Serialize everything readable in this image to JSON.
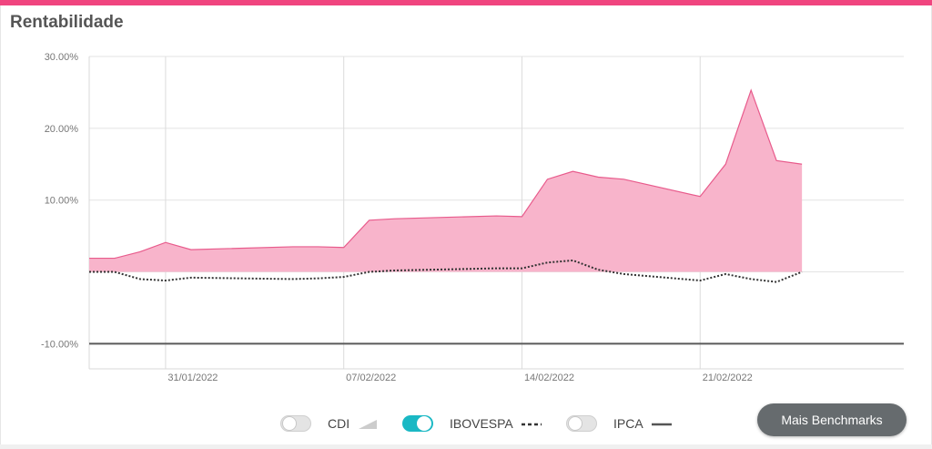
{
  "header": {
    "title": "Rentabilidade"
  },
  "colors": {
    "accent": "#f0457f",
    "area_fill": "#f8b4cb",
    "area_line": "#e85b8c",
    "benchmark_line": "#333333",
    "toggle_on": "#1ab8c4"
  },
  "chart_data": {
    "type": "area",
    "title": "Rentabilidade",
    "xlabel": "",
    "ylabel": "",
    "ylim": [
      -13.5,
      30
    ],
    "y_ticks": [
      30,
      20,
      10,
      -10
    ],
    "y_tick_labels": [
      "30.00%",
      "20.00%",
      "10.00%",
      "-10.00%"
    ],
    "x_ticks": [
      "2022-01-31",
      "2022-02-07",
      "2022-02-14",
      "2022-02-21"
    ],
    "x_tick_labels": [
      "31/01/2022",
      "07/02/2022",
      "14/02/2022",
      "21/02/2022"
    ],
    "x_range": [
      "2022-01-28",
      "2022-03-01"
    ],
    "grid": true,
    "series": [
      {
        "name": "",
        "style": "area",
        "x": [
          "2022-01-28",
          "2022-01-29",
          "2022-01-30",
          "2022-01-31",
          "2022-02-01",
          "2022-02-05",
          "2022-02-06",
          "2022-02-07",
          "2022-02-08",
          "2022-02-09",
          "2022-02-13",
          "2022-02-14",
          "2022-02-15",
          "2022-02-16",
          "2022-02-17",
          "2022-02-18",
          "2022-02-21",
          "2022-02-22",
          "2022-02-23",
          "2022-02-24",
          "2022-02-25"
        ],
        "values": [
          1.9,
          1.9,
          2.8,
          4.1,
          3.1,
          3.5,
          3.5,
          3.4,
          7.2,
          7.4,
          7.8,
          7.7,
          12.9,
          14.0,
          13.2,
          12.9,
          10.5,
          15.0,
          25.3,
          15.5,
          15.0
        ]
      },
      {
        "name": "IBOVESPA",
        "style": "dotted",
        "x": [
          "2022-01-28",
          "2022-01-29",
          "2022-01-30",
          "2022-01-31",
          "2022-02-01",
          "2022-02-05",
          "2022-02-06",
          "2022-02-07",
          "2022-02-08",
          "2022-02-09",
          "2022-02-13",
          "2022-02-14",
          "2022-02-15",
          "2022-02-16",
          "2022-02-17",
          "2022-02-18",
          "2022-02-21",
          "2022-02-22",
          "2022-02-23",
          "2022-02-24",
          "2022-02-25"
        ],
        "values": [
          0.0,
          0.0,
          -1.0,
          -1.2,
          -0.8,
          -1.0,
          -0.9,
          -0.7,
          0.0,
          0.2,
          0.5,
          0.5,
          1.3,
          1.6,
          0.3,
          -0.3,
          -1.2,
          -0.3,
          -1.0,
          -1.4,
          0.0
        ]
      }
    ],
    "reference_line": {
      "value": -10
    }
  },
  "legend": [
    {
      "id": "cdi",
      "label": "CDI",
      "enabled": false,
      "symbol": "area-triangle"
    },
    {
      "id": "ibovespa",
      "label": "IBOVESPA",
      "enabled": true,
      "symbol": "dashed-line"
    },
    {
      "id": "ipca",
      "label": "IPCA",
      "enabled": false,
      "symbol": "solid-line"
    }
  ],
  "buttons": {
    "mais_benchmarks": "Mais Benchmarks"
  }
}
